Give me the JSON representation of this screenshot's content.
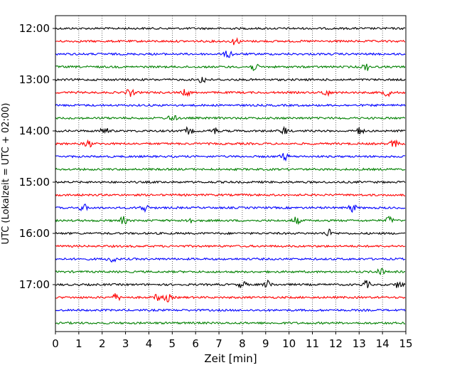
{
  "chart_data": {
    "type": "line",
    "title": "",
    "xlabel": "Zeit  [min]",
    "ylabel": "UTC (Lokalzeit = UTC + 02:00)",
    "xlim": [
      0,
      15
    ],
    "x_ticks": [
      "0",
      "1",
      "2",
      "3",
      "4",
      "5",
      "6",
      "7",
      "8",
      "9",
      "10",
      "11",
      "12",
      "13",
      "14",
      "15"
    ],
    "y_tick_labels": [
      "12:00",
      "13:00",
      "14:00",
      "15:00",
      "16:00",
      "17:00"
    ],
    "grid": "vertical dotted lines at each minute",
    "trace_colors": [
      "#000000",
      "#ff0000",
      "#0000ff",
      "#008000"
    ],
    "rows": [
      {
        "start": "12:00",
        "color": "#000000"
      },
      {
        "start": "12:15",
        "color": "#ff0000",
        "events_min": [
          7.7
        ]
      },
      {
        "start": "12:30",
        "color": "#0000ff",
        "events_min": [
          7.4
        ]
      },
      {
        "start": "12:45",
        "color": "#008000",
        "events_min": [
          8.5,
          13.3
        ]
      },
      {
        "start": "13:00",
        "color": "#000000",
        "events_min": [
          6.3
        ]
      },
      {
        "start": "13:15",
        "color": "#ff0000",
        "events_min": [
          3.2,
          5.6,
          11.6,
          14.2
        ]
      },
      {
        "start": "13:30",
        "color": "#0000ff"
      },
      {
        "start": "13:45",
        "color": "#008000",
        "events_min": [
          5.0
        ]
      },
      {
        "start": "14:00",
        "color": "#000000",
        "events_min": [
          2.1,
          5.7,
          6.8,
          9.8,
          13.0
        ]
      },
      {
        "start": "14:15",
        "color": "#ff0000",
        "events_min": [
          1.4,
          14.5
        ]
      },
      {
        "start": "14:30",
        "color": "#0000ff",
        "events_min": [
          9.8
        ]
      },
      {
        "start": "14:45",
        "color": "#008000"
      },
      {
        "start": "15:00",
        "color": "#000000"
      },
      {
        "start": "15:15",
        "color": "#ff0000"
      },
      {
        "start": "15:30",
        "color": "#0000ff",
        "events_min": [
          1.2,
          3.8,
          12.7
        ]
      },
      {
        "start": "15:45",
        "color": "#008000",
        "events_min": [
          2.9,
          5.7,
          10.3,
          14.3
        ]
      },
      {
        "start": "16:00",
        "color": "#000000",
        "events_min": [
          11.7
        ]
      },
      {
        "start": "16:15",
        "color": "#ff0000"
      },
      {
        "start": "16:30",
        "color": "#0000ff",
        "events_min": [
          2.4
        ]
      },
      {
        "start": "16:45",
        "color": "#008000",
        "events_min": [
          13.9
        ]
      },
      {
        "start": "17:00",
        "color": "#000000",
        "events_min": [
          8.0,
          9.1,
          13.3,
          14.7
        ]
      },
      {
        "start": "17:15",
        "color": "#ff0000",
        "events_min": [
          2.6,
          4.4,
          4.8
        ]
      },
      {
        "start": "17:30",
        "color": "#0000ff"
      },
      {
        "start": "17:45",
        "color": "#008000"
      }
    ]
  }
}
